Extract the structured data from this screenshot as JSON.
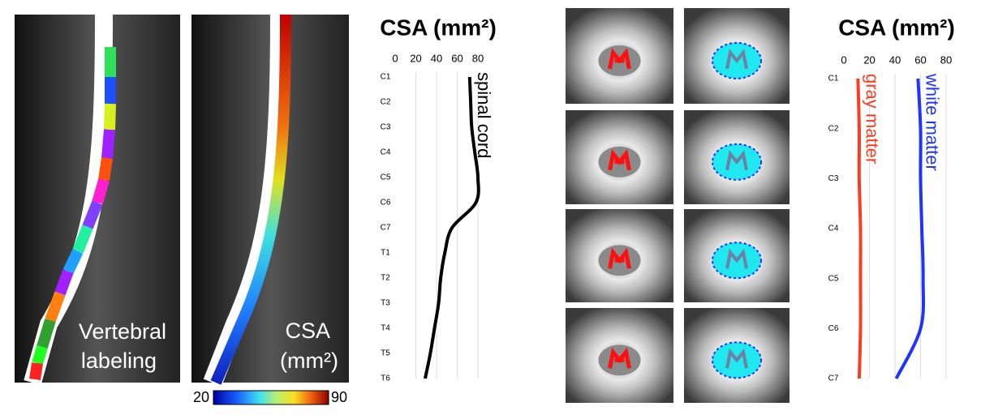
{
  "images": {
    "vertebral_label": [
      "Vertebral",
      "labeling"
    ],
    "csa_label": [
      "CSA",
      "(mm²)"
    ],
    "colorbar": {
      "min": 20,
      "max": 90
    }
  },
  "chart_data": [
    {
      "type": "line",
      "orientation": "horizontal",
      "title": "CSA (mm²)",
      "categories": [
        "C1",
        "C2",
        "C3",
        "C4",
        "C5",
        "C6",
        "C7",
        "T1",
        "T2",
        "T3",
        "T4",
        "T5",
        "T6"
      ],
      "series": [
        {
          "name": "spinal cord",
          "color": "#000000",
          "values": [
            72,
            73,
            74,
            77,
            80,
            78,
            55,
            48,
            44,
            42,
            38,
            34,
            29
          ]
        }
      ],
      "xlim": [
        0,
        80
      ],
      "xticks": [
        0,
        20,
        40,
        60,
        80
      ],
      "grid": true
    },
    {
      "type": "line",
      "orientation": "horizontal",
      "title": "CSA (mm²)",
      "categories": [
        "C1",
        "C2",
        "C3",
        "C4",
        "C5",
        "C6",
        "C7"
      ],
      "series": [
        {
          "name": "gray matter",
          "color": "#ff3b1f",
          "values": [
            11,
            12,
            12,
            13,
            13,
            13,
            12
          ]
        },
        {
          "name": "white matter",
          "color": "#1f35ff",
          "values": [
            58,
            60,
            60,
            61,
            62,
            60,
            41
          ]
        }
      ],
      "xlim": [
        0,
        80
      ],
      "xticks": [
        0,
        20,
        40,
        60,
        80
      ],
      "grid": true
    }
  ]
}
